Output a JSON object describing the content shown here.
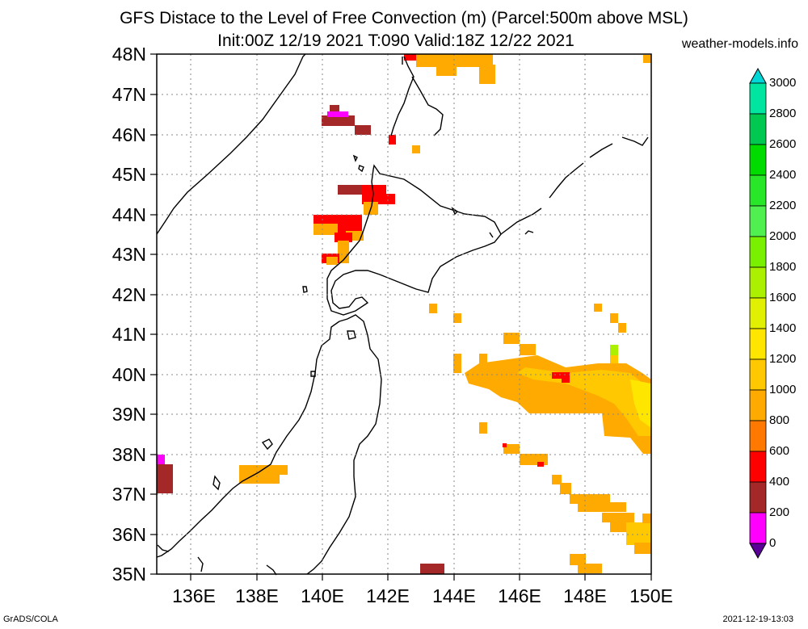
{
  "title_line1": "GFS Distace to the Level of Free Convection (m) (Parcel:500m above MSL)",
  "title_line2": "Init:00Z 12/19 2021 T:090 Valid:18Z 12/22 2021",
  "site": "weather-models.info",
  "footer_left": "GrADS/COLA",
  "footer_right": "2021-12-19-13:03",
  "lat_labels": [
    "48N",
    "47N",
    "46N",
    "45N",
    "44N",
    "43N",
    "42N",
    "41N",
    "40N",
    "39N",
    "38N",
    "37N",
    "36N",
    "35N"
  ],
  "lon_labels": [
    "136E",
    "138E",
    "140E",
    "142E",
    "144E",
    "146E",
    "148E",
    "150E"
  ],
  "colorbar": {
    "labels": [
      "3000",
      "2800",
      "2600",
      "2400",
      "2200",
      "2000",
      "1800",
      "1600",
      "1400",
      "1200",
      "1000",
      "800",
      "600",
      "400",
      "200",
      "0"
    ],
    "colors_top_to_bottom": [
      "#00d6d6",
      "#00e6a0",
      "#00c850",
      "#00dc00",
      "#28e628",
      "#50f050",
      "#78f000",
      "#aaf000",
      "#e1f000",
      "#ffe600",
      "#ffc800",
      "#ffaa00",
      "#ff7800",
      "#ff0000",
      "#a52828",
      "#ff00ff",
      "#5a0096"
    ]
  }
}
